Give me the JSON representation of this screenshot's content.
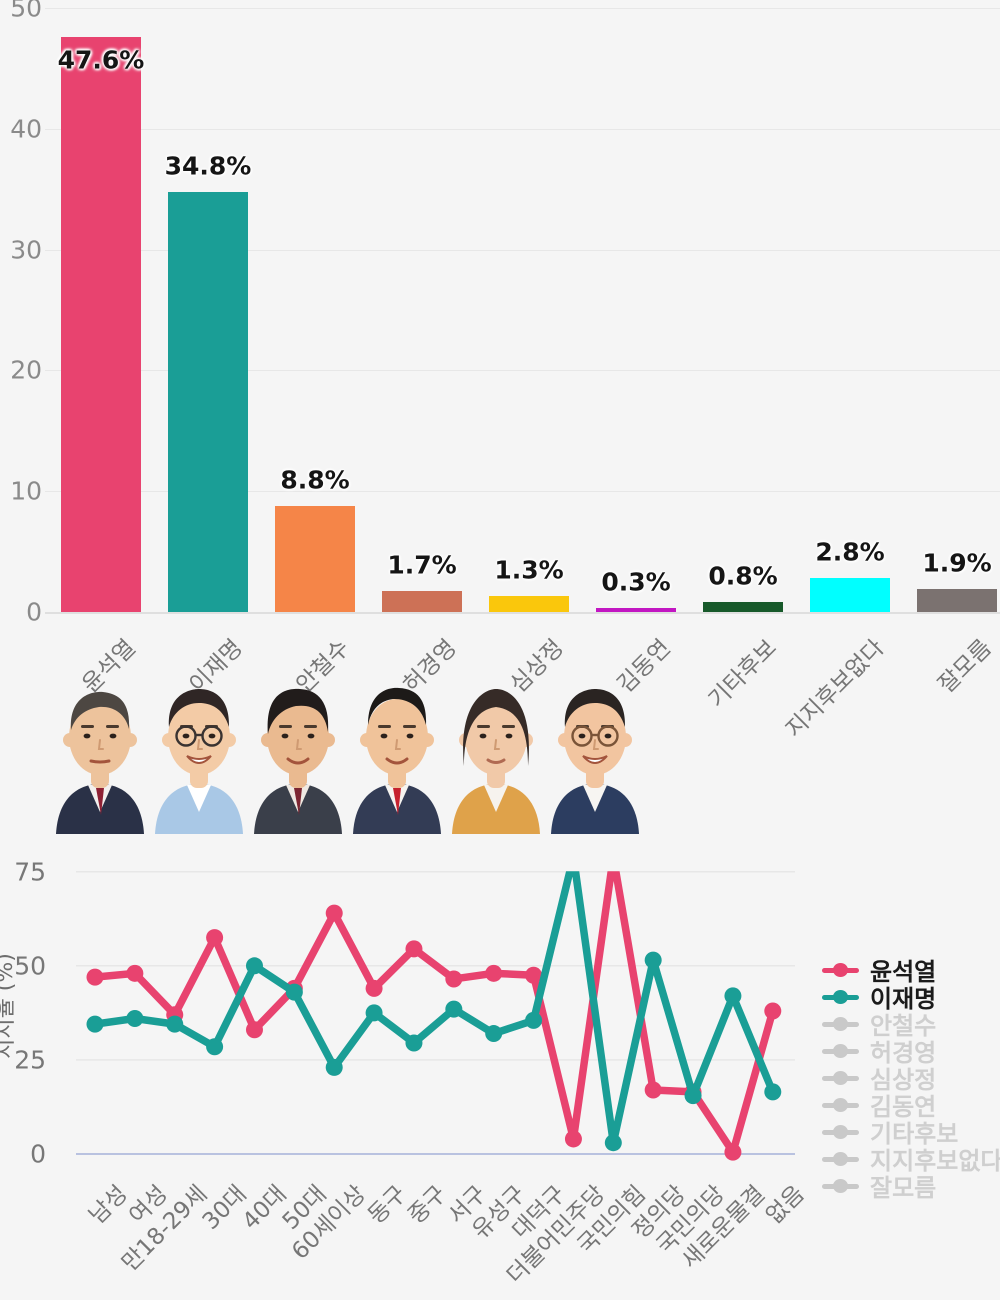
{
  "background": "#f5f5f5",
  "chart_data": [
    {
      "type": "bar",
      "title": "",
      "categories": [
        "윤석열",
        "이재명",
        "안철수",
        "허경영",
        "심상정",
        "김동연",
        "기타후보",
        "지지후보없다",
        "잘모름"
      ],
      "values": [
        47.6,
        34.8,
        8.8,
        1.7,
        1.3,
        0.3,
        0.8,
        2.8,
        1.9
      ],
      "value_labels": [
        "47.6%",
        "34.8%",
        "8.8%",
        "1.7%",
        "1.3%",
        "0.3%",
        "0.8%",
        "2.8%",
        "1.9%"
      ],
      "bar_colors": [
        "#e8436f",
        "#1a9e96",
        "#f58548",
        "#cd7156",
        "#fac70c",
        "#c217c2",
        "#17592a",
        "#00ffff",
        "#7b7270"
      ],
      "y_ticks": [
        0,
        10,
        20,
        30,
        40,
        50
      ],
      "ylim": [
        0,
        50
      ],
      "grid": true,
      "xlabel": "",
      "ylabel": ""
    },
    {
      "type": "line",
      "title": "",
      "categories": [
        "남성",
        "여성",
        "만18-29세",
        "30대",
        "40대",
        "50대",
        "60세이상",
        "동구",
        "중구",
        "서구",
        "유성구",
        "대덕구",
        "더불어민주당",
        "국민의힘",
        "정의당",
        "국민의당",
        "새로운물결",
        "없음"
      ],
      "series": [
        {
          "name": "윤석열",
          "color": "#e8436f",
          "values": [
            47,
            48,
            37,
            57.5,
            33,
            44,
            64,
            44,
            54.5,
            46.5,
            48,
            47.5,
            4,
            79,
            17,
            16.5,
            0.5,
            38
          ]
        },
        {
          "name": "이재명",
          "color": "#1a9e96",
          "values": [
            34.5,
            36,
            34.5,
            28.5,
            50,
            43,
            23,
            37.5,
            29.5,
            38.5,
            32,
            35.5,
            79,
            3,
            51.5,
            15.5,
            42,
            16.5
          ]
        }
      ],
      "y_ticks": [
        0,
        25,
        50,
        75
      ],
      "ylim": [
        0,
        75
      ],
      "clip_above": 75,
      "ylabel": "지지율 (%)",
      "grid": true,
      "zero_line_color": "#b9c2e0",
      "legend_position": "right",
      "legend_items": [
        {
          "label": "윤석열",
          "color": "#e8436f",
          "active": true
        },
        {
          "label": "이재명",
          "color": "#1a9e96",
          "active": true
        },
        {
          "label": "안철수",
          "color": "#c9c9c9",
          "active": false
        },
        {
          "label": "허경영",
          "color": "#c9c9c9",
          "active": false
        },
        {
          "label": "심상정",
          "color": "#c9c9c9",
          "active": false
        },
        {
          "label": "김동연",
          "color": "#c9c9c9",
          "active": false
        },
        {
          "label": "기타후보",
          "color": "#c9c9c9",
          "active": false
        },
        {
          "label": "지지후보없다",
          "color": "#c9c9c9",
          "active": false
        },
        {
          "label": "잘모름",
          "color": "#c9c9c9",
          "active": false
        }
      ]
    }
  ],
  "avatars": [
    {
      "name": "윤석열",
      "skin": "#edc39c",
      "hair": "#4d4742",
      "hairstyle": "sidepart",
      "suit": "#2a3147",
      "shirt": "#f2f0ee",
      "tie": "#8e2134",
      "glasses": "none",
      "mouth": "neutral"
    },
    {
      "name": "이재명",
      "skin": "#f3cba6",
      "hair": "#2f2625",
      "hairstyle": "round",
      "suit": "#a9c8e6",
      "shirt": "#ffffff",
      "tie": "",
      "glasses": "#3a3331",
      "mouth": "bigsmile"
    },
    {
      "name": "안철수",
      "skin": "#eaba90",
      "hair": "#211c1b",
      "hairstyle": "fringe",
      "suit": "#3a3f4a",
      "shirt": "#efe9e2",
      "tie": "#7c2531",
      "glasses": "none",
      "mouth": "smile"
    },
    {
      "name": "허경영",
      "skin": "#f0c39a",
      "hair": "#1d1a18",
      "hairstyle": "slick",
      "suit": "#333c55",
      "shirt": "#f6f4f0",
      "tie": "#c6222e",
      "glasses": "none",
      "mouth": "smile"
    },
    {
      "name": "심상정",
      "skin": "#f1c9a8",
      "hair": "#362b27",
      "hairstyle": "bob",
      "suit": "#dfa24a",
      "shirt": "#f6f3ee",
      "tie": "",
      "glasses": "none",
      "mouth": "soft"
    },
    {
      "name": "김동연",
      "skin": "#f2c5a0",
      "hair": "#2a2422",
      "hairstyle": "round",
      "suit": "#2c3d60",
      "shirt": "#f7f5f2",
      "tie": "",
      "glasses": "#7a5438",
      "mouth": "bigsmile"
    }
  ]
}
